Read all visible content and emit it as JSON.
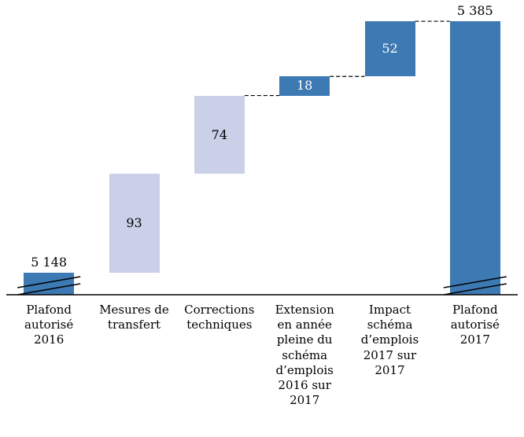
{
  "chart_data": {
    "type": "bar",
    "subtype": "waterfall",
    "title": "",
    "categories": [
      "Plafond\nautorisé\n2016",
      "Mesures de\ntransfert",
      "Corrections\ntechniques",
      "Extension\nen année\npleine du\nschéma\nd’emplois\n2016 sur\n2017",
      "Impact\nschéma\nd’emplois\n2017 sur\n2017",
      "Plafond\nautorisé\n2017"
    ],
    "values": [
      5148,
      93,
      74,
      18,
      52,
      5385
    ],
    "value_labels": [
      "5 148",
      "93",
      "74",
      "18",
      "52",
      "5 385"
    ],
    "bar_roles": [
      "total",
      "delta",
      "delta",
      "delta",
      "delta",
      "total"
    ],
    "bar_colors": [
      "#3d79b2",
      "#c9d0e8",
      "#c9d0e8",
      "#3d79b2",
      "#3d79b2",
      "#3d79b2"
    ],
    "label_placement": [
      "above",
      "inside",
      "inside",
      "inside",
      "inside",
      "above"
    ],
    "label_colors": [
      "#000000",
      "#000000",
      "#000000",
      "#ffffff",
      "#ffffff",
      "#000000"
    ],
    "connectors": [
      [
        2,
        3
      ],
      [
        3,
        4
      ],
      [
        4,
        5
      ]
    ],
    "axis_break": true,
    "grid": false,
    "legend": false,
    "xlabel": "",
    "ylabel": ""
  }
}
